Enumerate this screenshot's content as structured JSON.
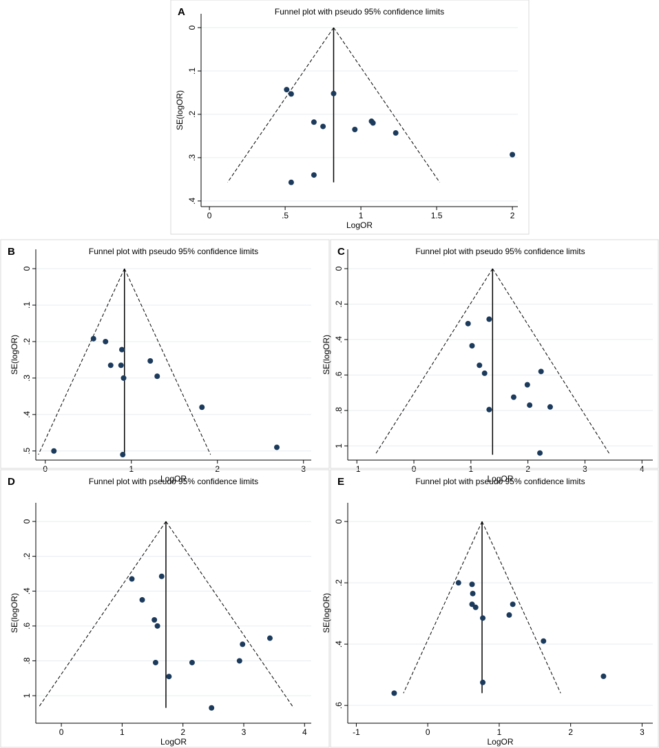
{
  "chart_data": [
    {
      "type": "scatter",
      "panel": "A",
      "title": "Funnel plot with pseudo 95% confidence limits",
      "xlabel": "LogOR",
      "ylabel": "SE(logOR)",
      "x": [
        0.51,
        0.54,
        0.82,
        0.69,
        0.75,
        0.96,
        1.07,
        1.08,
        1.23,
        2.0,
        0.69,
        0.54
      ],
      "y": [
        0.143,
        0.153,
        0.152,
        0.218,
        0.228,
        0.235,
        0.216,
        0.22,
        0.243,
        0.293,
        0.34,
        0.357
      ],
      "funnel": {
        "center": 0.82,
        "se_max": 0.357,
        "lower_limit": 0.12,
        "upper_limit": 1.52
      },
      "xlim": [
        -0.055,
        2.036
      ],
      "ylim": [
        -0.032,
        0.413
      ],
      "y_reversed": true,
      "xticks": [
        0,
        {
          "value": 0.5,
          "label": ".5"
        },
        1,
        1.5,
        2
      ],
      "yticks": [
        0,
        {
          "value": 0.1,
          "label": ".1"
        },
        {
          "value": 0.2,
          "label": ".2"
        },
        {
          "value": 0.3,
          "label": ".3"
        },
        {
          "value": 0.4,
          "label": ".4"
        }
      ],
      "grid": true,
      "color": "#1b3a5c"
    },
    {
      "type": "scatter",
      "panel": "B",
      "title": "Funnel plot with pseudo 95% confidence limits",
      "xlabel": "LogOR",
      "ylabel": "SE(logOR)",
      "x": [
        0.56,
        0.7,
        0.89,
        0.76,
        0.88,
        1.22,
        0.91,
        1.3,
        1.82,
        0.1,
        0.9,
        2.69
      ],
      "y": [
        0.192,
        0.2,
        0.222,
        0.265,
        0.265,
        0.253,
        0.3,
        0.295,
        0.38,
        0.5,
        0.51,
        0.49
      ],
      "funnel": {
        "center": 0.92,
        "se_max": 0.51,
        "lower_limit": -0.08,
        "upper_limit": 1.92
      },
      "xlim": [
        -0.11,
        3.09
      ],
      "ylim": [
        -0.053,
        0.525
      ],
      "y_reversed": true,
      "xticks": [
        0,
        1,
        2,
        3
      ],
      "yticks": [
        0,
        {
          "value": 0.1,
          "label": ".1"
        },
        {
          "value": 0.2,
          "label": ".2"
        },
        {
          "value": 0.3,
          "label": ".3"
        },
        {
          "value": 0.4,
          "label": ".4"
        },
        {
          "value": 0.5,
          "label": ".5"
        }
      ],
      "grid": true,
      "color": "#1b3a5c"
    },
    {
      "type": "scatter",
      "panel": "C",
      "title": "Funnel plot with pseudo 95% confidence limits",
      "xlabel": "LogOR",
      "ylabel": "SE(logOR)",
      "x": [
        0.95,
        1.32,
        1.02,
        1.15,
        1.24,
        2.23,
        1.99,
        1.75,
        2.03,
        2.39,
        1.32,
        2.21
      ],
      "y": [
        0.31,
        0.285,
        0.435,
        0.545,
        0.59,
        0.58,
        0.655,
        0.725,
        0.77,
        0.78,
        0.795,
        1.04
      ],
      "funnel": {
        "center": 1.38,
        "se_max": 1.05,
        "lower_limit": -0.68,
        "upper_limit": 3.44
      },
      "xlim": [
        -1.16,
        4.19
      ],
      "ylim": [
        -0.109,
        1.08
      ],
      "y_reversed": true,
      "xticks": [
        -1,
        0,
        1,
        2,
        3,
        4
      ],
      "yticks": [
        0,
        {
          "value": 0.2,
          "label": ".2"
        },
        {
          "value": 0.4,
          "label": ".4"
        },
        {
          "value": 0.6,
          "label": ".6"
        },
        {
          "value": 0.8,
          "label": ".8"
        },
        1
      ],
      "grid": true,
      "color": "#1b3a5c"
    },
    {
      "type": "scatter",
      "panel": "D",
      "title": "Funnel plot with pseudo 95% confidence limits",
      "xlabel": "LogOR",
      "ylabel": "SE(logOR)",
      "x": [
        1.16,
        1.65,
        1.33,
        1.53,
        1.58,
        1.55,
        1.77,
        2.15,
        2.98,
        2.93,
        3.43,
        2.47
      ],
      "y": [
        0.33,
        0.315,
        0.45,
        0.565,
        0.6,
        0.81,
        0.89,
        0.81,
        0.705,
        0.8,
        0.67,
        1.07
      ],
      "funnel": {
        "center": 1.72,
        "se_max": 1.07,
        "lower_limit": -0.38,
        "upper_limit": 3.82
      },
      "xlim": [
        -0.42,
        4.11
      ],
      "ylim": [
        -0.107,
        1.158
      ],
      "y_reversed": true,
      "xticks": [
        0,
        1,
        2,
        3,
        4
      ],
      "yticks": [
        0,
        {
          "value": 0.2,
          "label": ".2"
        },
        {
          "value": 0.4,
          "label": ".4"
        },
        {
          "value": 0.6,
          "label": ".6"
        },
        {
          "value": 0.8,
          "label": ".8"
        },
        1
      ],
      "grid": true,
      "color": "#1b3a5c"
    },
    {
      "type": "scatter",
      "panel": "E",
      "title": "Funnel plot with pseudo 95% confidence limits",
      "xlabel": "LogOR",
      "ylabel": "SE(logOR)",
      "x": [
        0.43,
        0.62,
        0.63,
        0.62,
        0.67,
        0.77,
        1.19,
        1.14,
        1.62,
        2.46,
        0.77,
        -0.47
      ],
      "y": [
        0.2,
        0.205,
        0.235,
        0.27,
        0.28,
        0.315,
        0.27,
        0.305,
        0.39,
        0.505,
        0.525,
        0.56
      ],
      "funnel": {
        "center": 0.76,
        "se_max": 0.56,
        "lower_limit": -0.34,
        "upper_limit": 1.86
      },
      "xlim": [
        -1.12,
        3.15
      ],
      "ylim": [
        -0.061,
        0.658
      ],
      "y_reversed": true,
      "xticks": [
        -1,
        0,
        1,
        2,
        3
      ],
      "yticks": [
        0,
        {
          "value": 0.2,
          "label": ".2"
        },
        {
          "value": 0.4,
          "label": ".4"
        },
        {
          "value": 0.6,
          "label": ".6"
        }
      ],
      "grid": true,
      "color": "#1b3a5c"
    }
  ]
}
